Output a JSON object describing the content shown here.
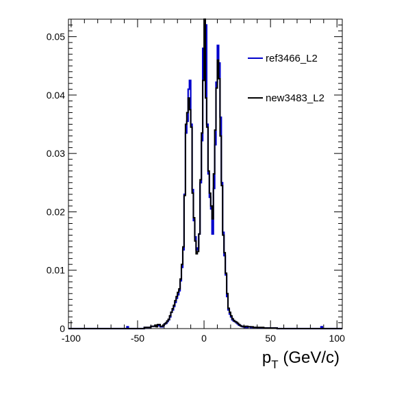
{
  "chart_data": {
    "type": "line",
    "subtype": "step-histogram",
    "title": "",
    "xlabel_main": "p",
    "xlabel_sub": "T",
    "xlabel_unit": " (GeV/c)",
    "ylabel": "",
    "xlim": [
      -102,
      104
    ],
    "ylim": [
      0,
      0.053
    ],
    "x_ticks": [
      -100,
      -50,
      0,
      50,
      100
    ],
    "x_tick_labels": [
      "-100",
      "-50",
      "0",
      "50",
      "100"
    ],
    "y_ticks": [
      0,
      0.01,
      0.02,
      0.03,
      0.04,
      0.05
    ],
    "y_tick_labels": [
      "0",
      "0.01",
      "0.02",
      "0.03",
      "0.04",
      "0.05"
    ],
    "grid": false,
    "legend_position": "top-right",
    "series": [
      {
        "name": "ref3466_L2",
        "color": "#0000cc",
        "x": [
          -102,
          -90,
          -75,
          -58,
          -57,
          -50,
          -45,
          -40,
          -36,
          -34,
          -33,
          -31,
          -30,
          -29,
          -28,
          -27,
          -26,
          -25,
          -24,
          -23,
          -22,
          -21,
          -20,
          -19,
          -18,
          -17,
          -16,
          -15,
          -14,
          -13,
          -12,
          -11,
          -10,
          -9,
          -8,
          -7,
          -6,
          -5,
          -4,
          -3,
          -2,
          -1,
          0,
          1,
          2,
          3,
          4,
          5,
          6,
          7,
          8,
          9,
          10,
          11,
          12,
          13,
          14,
          15,
          16,
          17,
          18,
          19,
          20,
          21,
          22,
          23,
          24,
          25,
          26,
          27,
          28,
          29,
          30,
          31,
          33,
          35,
          37,
          40,
          45,
          50,
          55,
          60,
          65,
          70,
          75,
          80,
          85,
          87,
          88,
          89,
          90,
          95,
          104
        ],
        "y": [
          0,
          0,
          0,
          0.0003,
          0,
          0,
          0.0002,
          0.0004,
          0.0005,
          0.0006,
          0.0003,
          0.0005,
          0.0008,
          0.0009,
          0.0012,
          0.0015,
          0.002,
          0.0028,
          0.0032,
          0.0038,
          0.0045,
          0.0052,
          0.0058,
          0.0065,
          0.0082,
          0.0105,
          0.0135,
          0.023,
          0.0335,
          0.0355,
          0.041,
          0.0425,
          0.035,
          0.0238,
          0.0185,
          0.0157,
          0.0135,
          0.0138,
          0.0162,
          0.025,
          0.0322,
          0.048,
          0.043,
          0.052,
          0.035,
          0.0265,
          0.0225,
          0.0205,
          0.0162,
          0.024,
          0.0315,
          0.0422,
          0.0485,
          0.0455,
          0.0362,
          0.025,
          0.0165,
          0.0125,
          0.0092,
          0.0055,
          0.0032,
          0.0025,
          0.002,
          0.0015,
          0.0013,
          0.0012,
          0.001,
          0.0008,
          0.0006,
          0.0005,
          0.0004,
          0.0003,
          0.0003,
          0.0002,
          0.0003,
          0.0002,
          0.0002,
          0.0001,
          0.0001,
          0.0001,
          0,
          0,
          0,
          0,
          0,
          0,
          0,
          0,
          0.0003,
          0,
          0,
          0,
          0
        ]
      },
      {
        "name": "new3483_L2",
        "color": "#000000",
        "x": [
          -102,
          -90,
          -75,
          -58,
          -50,
          -45,
          -40,
          -37,
          -36,
          -35,
          -33,
          -31,
          -30,
          -29,
          -28,
          -27,
          -26,
          -25,
          -24,
          -23,
          -22,
          -21,
          -20,
          -19,
          -18,
          -17,
          -16,
          -15,
          -14,
          -13,
          -12,
          -11,
          -10,
          -9,
          -8,
          -7,
          -6,
          -5,
          -4,
          -3,
          -2,
          -1,
          0,
          1,
          2,
          3,
          4,
          5,
          6,
          7,
          8,
          9,
          10,
          11,
          12,
          13,
          14,
          15,
          16,
          17,
          18,
          19,
          20,
          21,
          22,
          23,
          24,
          25,
          26,
          27,
          28,
          29,
          30,
          31,
          33,
          35,
          37,
          40,
          45,
          50,
          55,
          60,
          65,
          70,
          75,
          80,
          85,
          90,
          95,
          104
        ],
        "y": [
          0,
          0,
          0,
          0,
          0,
          0.0002,
          0.0004,
          0.0006,
          0.0003,
          0.0007,
          0.0004,
          0.0006,
          0.0008,
          0.001,
          0.0013,
          0.0016,
          0.0022,
          0.0028,
          0.0034,
          0.004,
          0.0048,
          0.0055,
          0.0062,
          0.0068,
          0.0085,
          0.011,
          0.014,
          0.0228,
          0.035,
          0.037,
          0.0395,
          0.0375,
          0.0345,
          0.0232,
          0.019,
          0.015,
          0.0128,
          0.0132,
          0.0162,
          0.0255,
          0.0335,
          0.0425,
          0.053,
          0.0395,
          0.0345,
          0.027,
          0.0232,
          0.021,
          0.0188,
          0.0265,
          0.034,
          0.0412,
          0.046,
          0.0428,
          0.033,
          0.0245,
          0.016,
          0.013,
          0.0095,
          0.006,
          0.0035,
          0.0028,
          0.0022,
          0.0017,
          0.0014,
          0.0012,
          0.0011,
          0.0009,
          0.0007,
          0.0005,
          0.0004,
          0.0004,
          0.0003,
          0.0004,
          0.0003,
          0.0003,
          0.0002,
          0.0002,
          0.0001,
          0.0001,
          0,
          0,
          0,
          0,
          0,
          0,
          0,
          0,
          0,
          0
        ]
      }
    ]
  }
}
